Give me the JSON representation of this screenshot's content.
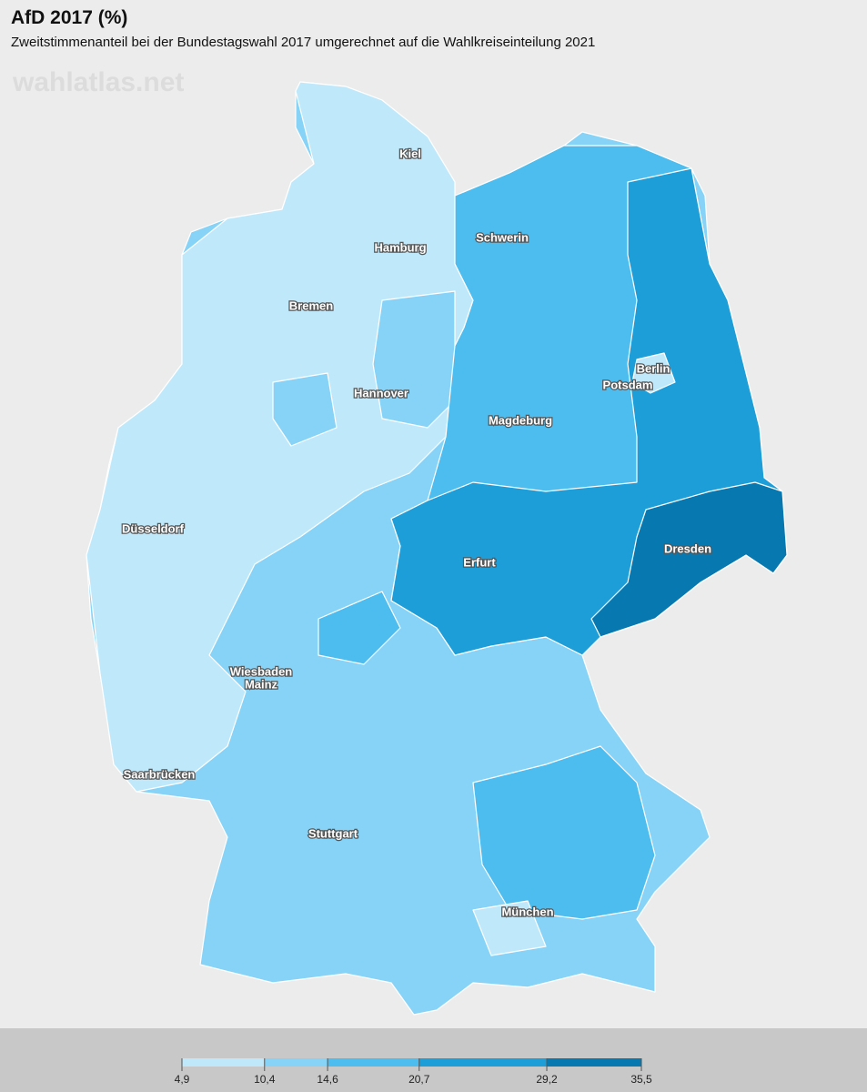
{
  "header": {
    "title": "AfD 2017 (%)",
    "subtitle": "Zweitstimmenanteil bei der Bundestagswahl 2017 umgerechnet auf die Wahlkreiseinteilung 2021",
    "watermark": "wahlatlas.net"
  },
  "cities": [
    "Kiel",
    "Hamburg",
    "Schwerin",
    "Bremen",
    "Berlin",
    "Potsdam",
    "Hannover",
    "Magdeburg",
    "Düsseldorf",
    "Dresden",
    "Erfurt",
    "Wiesbaden",
    "Mainz",
    "Saarbrücken",
    "Stuttgart",
    "München"
  ],
  "legend": {
    "breaks": [
      {
        "value": 4.9,
        "label": "4,9"
      },
      {
        "value": 10.4,
        "label": "10,4"
      },
      {
        "value": 14.6,
        "label": "14,6"
      },
      {
        "value": 20.7,
        "label": "20,7"
      },
      {
        "value": 29.2,
        "label": "29,2"
      },
      {
        "value": 35.5,
        "label": "35,5"
      }
    ],
    "colors": [
      "#bfe9fb",
      "#86d3f7",
      "#4dbcee",
      "#1e9ed9",
      "#0779b0"
    ]
  }
}
